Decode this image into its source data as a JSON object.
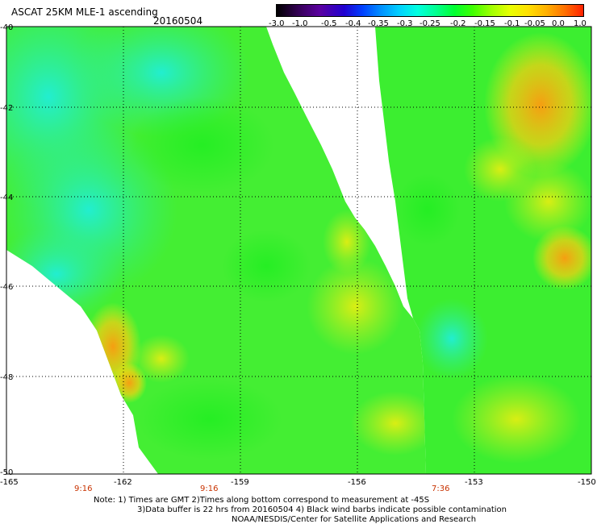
{
  "header": {
    "title": "ASCAT 25KM MLE-1 ascending",
    "date": "20160504"
  },
  "colorbar": {
    "ticks": [
      "-3.0",
      "-1.0",
      "-0.5",
      "-0.4",
      "-0.35",
      "-0.3",
      "-0.25",
      "-0.2",
      "-0.15",
      "-0.1",
      "-0.05",
      "0.0",
      "1.0"
    ]
  },
  "axes": {
    "lat_labels": [
      "-40",
      "-42",
      "-44",
      "-46",
      "-48",
      "-50"
    ],
    "lon_labels": [
      "-165",
      "-162",
      "-159",
      "-156",
      "-153",
      "-150"
    ],
    "lat_range": [
      -50,
      -40
    ],
    "lon_range": [
      -165,
      -150
    ]
  },
  "times": [
    "9:16",
    "9:16",
    "7:36"
  ],
  "notes": {
    "line1": "Note: 1) Times are GMT 2)Times along bottom correspond to measurement at -45S",
    "line2": "3)Data buffer is 22 hrs from 20160504 4) Black wind barbs indicate possible contamination",
    "line3": "NOAA/NESDIS/Center for Satellite Applications and Research"
  },
  "colors": {
    "swath_green": "#33ee22",
    "swath_cyan": "#22eedd",
    "swath_yellow": "#ddee11",
    "swath_orange": "#ffaa11",
    "time_label": "#c83200"
  }
}
